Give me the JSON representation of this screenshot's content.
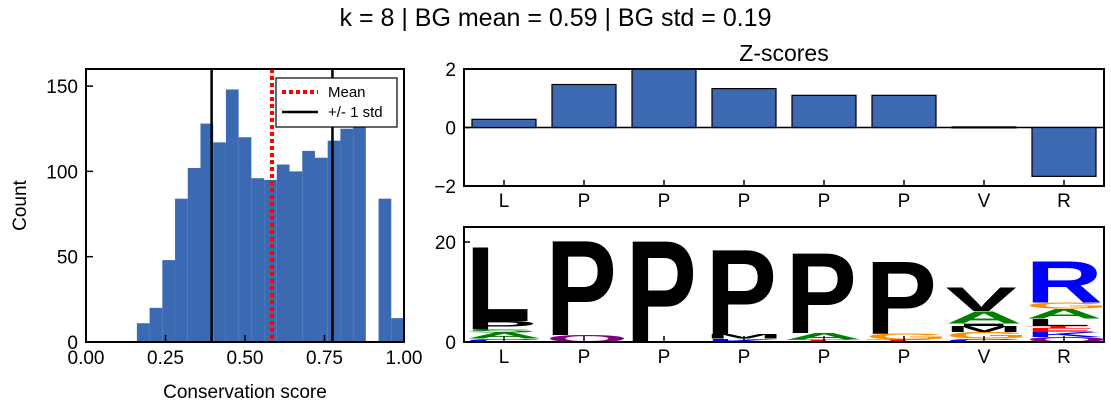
{
  "figure": {
    "suptitle": "k = 8 | BG mean = 0.59 | BG std = 0.19"
  },
  "colors": {
    "bar": "#3b6ab3",
    "mean_line": "#ff0000",
    "std_line": "#000000",
    "logo_A": "#008000",
    "logo_C": "#0000ff",
    "logo_G": "#ff8c00",
    "logo_T": "#ff0000",
    "logo_D": "#ff0000",
    "logo_E": "#ff0000",
    "logo_K": "#0000ff",
    "logo_R": "#0000ff",
    "logo_H": "#0000ff",
    "logo_S": "#008000",
    "logo_Q": "#800080",
    "logo_N": "#800080",
    "logo_hydrophobic": "#000000"
  },
  "chart_data": [
    {
      "type": "bar",
      "subtype": "histogram",
      "title": "",
      "xlabel": "Conservation score",
      "ylabel": "Count",
      "xlim": [
        0.0,
        1.0
      ],
      "ylim": [
        0,
        160
      ],
      "xticks": [
        "0.00",
        "0.25",
        "0.50",
        "0.75",
        "1.00"
      ],
      "yticks": [
        "0",
        "50",
        "100",
        "150"
      ],
      "bin_edges": [
        0.0,
        0.04,
        0.08,
        0.12,
        0.16,
        0.2,
        0.24,
        0.28,
        0.32,
        0.36,
        0.4,
        0.44,
        0.48,
        0.52,
        0.56,
        0.6,
        0.64,
        0.68,
        0.72,
        0.76,
        0.8,
        0.84,
        0.88,
        0.92,
        0.96,
        1.0
      ],
      "values": [
        0,
        0,
        0,
        0,
        11,
        20,
        48,
        84,
        102,
        128,
        117,
        148,
        120,
        96,
        95,
        104,
        100,
        112,
        108,
        118,
        125,
        138,
        0,
        84,
        14
      ],
      "mean": 0.585,
      "std_lines": [
        0.395,
        0.775
      ],
      "legend": {
        "placement": "top-right",
        "entries": [
          {
            "label": "Mean",
            "style": "dotted",
            "color": "#ff0000"
          },
          {
            "label": "+/- 1 std",
            "style": "solid",
            "color": "#000000"
          }
        ]
      },
      "grid": false
    },
    {
      "type": "bar",
      "title": "Z-scores",
      "categories": [
        "L",
        "P",
        "P",
        "P",
        "P",
        "P",
        "V",
        "R"
      ],
      "values": [
        0.28,
        1.47,
        2.0,
        1.33,
        1.1,
        1.1,
        0.02,
        -1.67
      ],
      "ylim": [
        -2,
        2
      ],
      "yticks": [
        "−2",
        "0",
        "2"
      ],
      "grid": false
    },
    {
      "type": "sequence_logo",
      "categories": [
        "L",
        "P",
        "P",
        "P",
        "P",
        "P",
        "V",
        "R"
      ],
      "ylim": [
        0,
        23
      ],
      "yticks": [
        "0",
        "20"
      ],
      "grid": false,
      "positions": [
        {
          "stack": [
            [
              "C",
              0.7
            ],
            [
              "A",
              1.2
            ],
            [
              "S",
              0.6
            ],
            [
              "P",
              1.7
            ],
            [
              "L",
              15.4
            ]
          ]
        },
        {
          "stack": [
            [
              "Q",
              1.4
            ],
            [
              "P",
              19.6
            ]
          ]
        },
        {
          "stack": [
            [
              "P",
              21.0
            ]
          ]
        },
        {
          "stack": [
            [
              "K",
              0.7
            ],
            [
              "M",
              0.9
            ],
            [
              "P",
              17.5
            ]
          ]
        },
        {
          "stack": [
            [
              "T",
              0.5
            ],
            [
              "A",
              1.3
            ],
            [
              "P",
              16.6
            ]
          ]
        },
        {
          "stack": [
            [
              "T",
              0.5
            ],
            [
              "G",
              1.2
            ],
            [
              "P",
              15.0
            ]
          ]
        },
        {
          "stack": [
            [
              "C",
              0.7
            ],
            [
              "G",
              1.3
            ],
            [
              "M",
              1.2
            ],
            [
              "I",
              0.5
            ],
            [
              "A",
              2.5
            ],
            [
              "V",
              4.9
            ]
          ]
        },
        {
          "stack": [
            [
              "Q",
              1.0
            ],
            [
              "K",
              1.0
            ],
            [
              "E",
              0.8
            ],
            [
              "T",
              0.4
            ],
            [
              "L",
              1.5
            ],
            [
              "A",
              2.0
            ],
            [
              "G",
              1.2
            ],
            [
              "R",
              8.5
            ]
          ]
        }
      ]
    }
  ]
}
